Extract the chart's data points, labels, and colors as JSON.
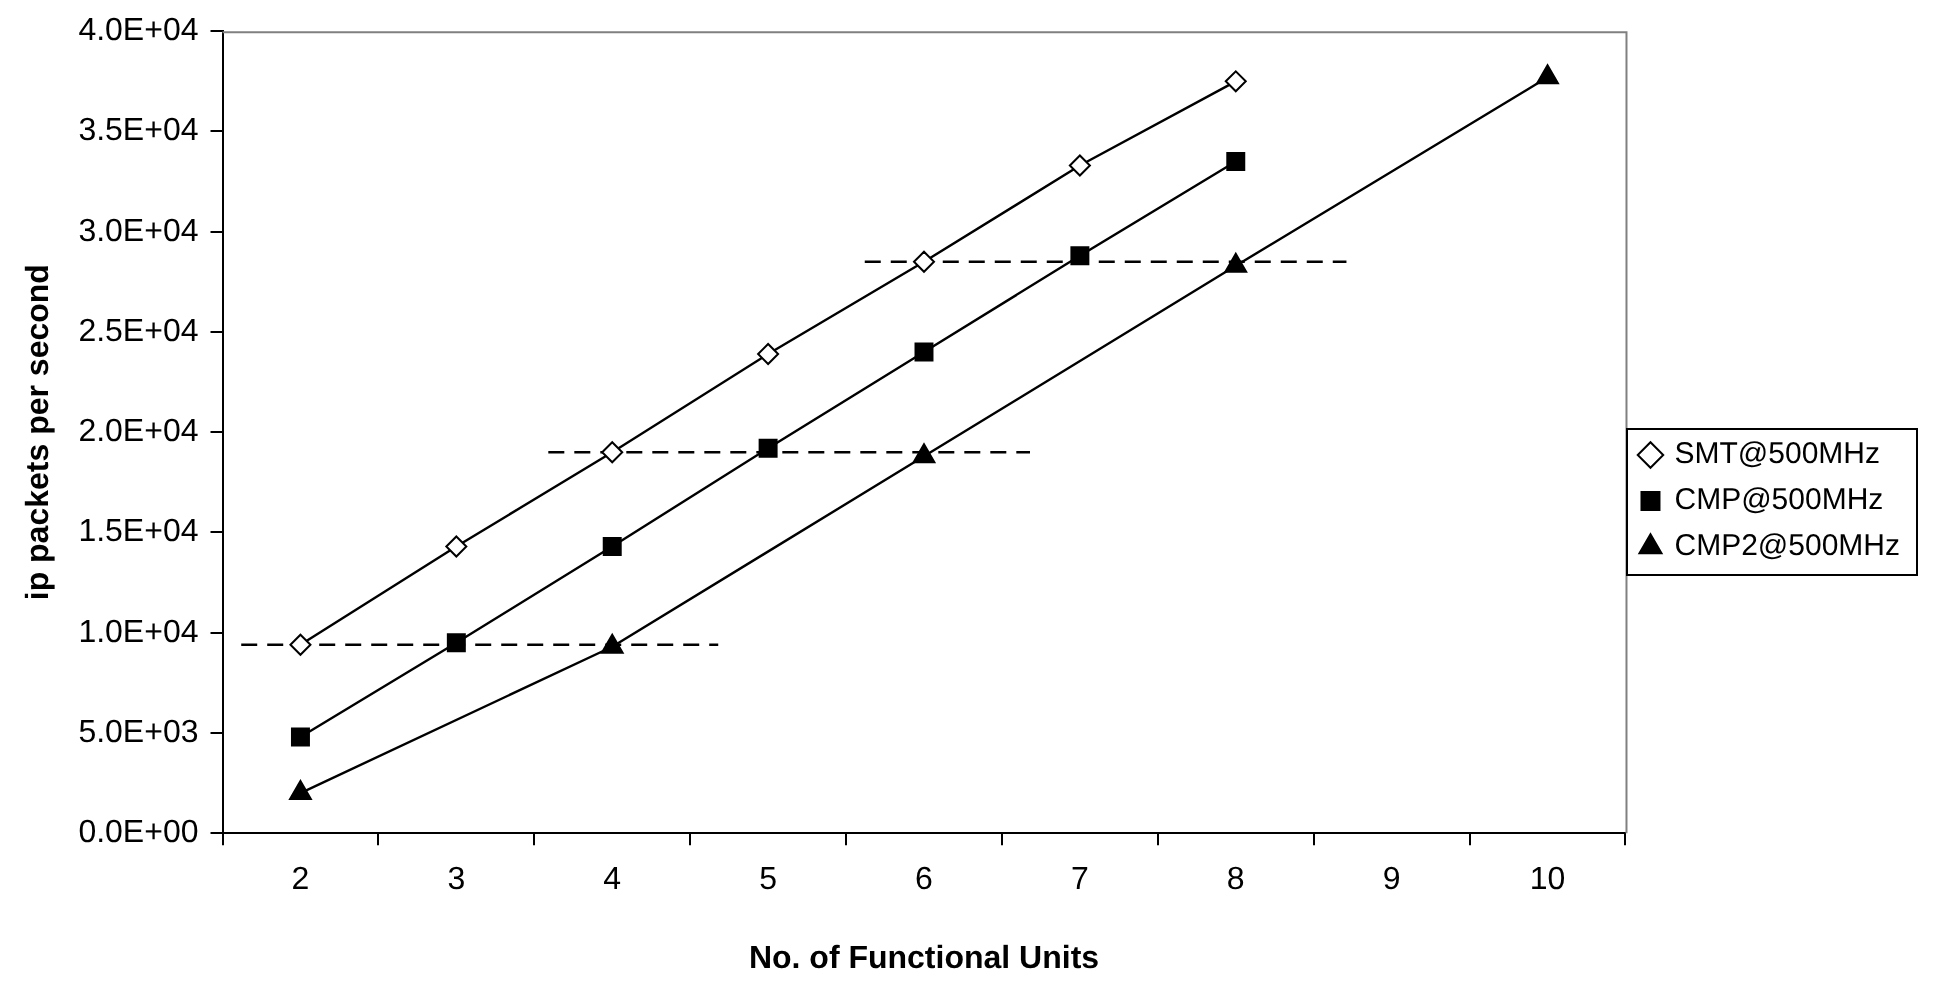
{
  "chart_data": {
    "type": "line",
    "xlabel": "No. of Functional Units",
    "ylabel": "ip packets per second",
    "xlim": [
      1.5,
      10.5
    ],
    "xticks": [
      {
        "value": 1.5,
        "label": null
      },
      {
        "value": 2,
        "label": "2"
      },
      {
        "value": 2.5,
        "label": null
      },
      {
        "value": 3,
        "label": "3"
      },
      {
        "value": 3.5,
        "label": null
      },
      {
        "value": 4,
        "label": "4"
      },
      {
        "value": 4.5,
        "label": null
      },
      {
        "value": 5,
        "label": "5"
      },
      {
        "value": 5.5,
        "label": null
      },
      {
        "value": 6,
        "label": "6"
      },
      {
        "value": 6.5,
        "label": null
      },
      {
        "value": 7,
        "label": "7"
      },
      {
        "value": 7.5,
        "label": null
      },
      {
        "value": 8,
        "label": "8"
      },
      {
        "value": 8.5,
        "label": null
      },
      {
        "value": 9,
        "label": "9"
      },
      {
        "value": 9.5,
        "label": null
      },
      {
        "value": 10,
        "label": "10"
      },
      {
        "value": 10.5,
        "label": null
      }
    ],
    "ylim": [
      0,
      40000
    ],
    "yticks": [
      {
        "value": 0,
        "label": "0.0E+00"
      },
      {
        "value": 5000,
        "label": "5.0E+03"
      },
      {
        "value": 10000,
        "label": "1.0E+04"
      },
      {
        "value": 15000,
        "label": "1.5E+04"
      },
      {
        "value": 20000,
        "label": "2.0E+04"
      },
      {
        "value": 25000,
        "label": "2.5E+04"
      },
      {
        "value": 30000,
        "label": "3.0E+04"
      },
      {
        "value": 35000,
        "label": "3.5E+04"
      },
      {
        "value": 40000,
        "label": "4.0E+04"
      }
    ],
    "grid": false,
    "legend": "right",
    "line_style": "solid",
    "series": [
      {
        "name": "SMT@500MHz",
        "color": "#000000",
        "marker": "diamond",
        "x": [
          2,
          3,
          4,
          5,
          6,
          7,
          8
        ],
        "values": [
          9400,
          14300,
          19000,
          23900,
          28500,
          33300,
          37500
        ]
      },
      {
        "name": "CMP@500MHz",
        "color": "#000000",
        "marker": "square",
        "x": [
          2,
          3,
          4,
          5,
          6,
          7,
          8
        ],
        "values": [
          4800,
          9500,
          14300,
          19200,
          24000,
          28800,
          33500
        ]
      },
      {
        "name": "CMP2@500MHz",
        "color": "#000000",
        "marker": "triangle",
        "x": [
          2,
          4,
          6,
          8,
          10
        ],
        "values": [
          2000,
          9300,
          18800,
          28300,
          37700
        ]
      },
      {
        "color": "#000000",
        "marker": "none",
        "line_style": "dashed",
        "x": [
          1.62,
          4.68
        ],
        "values": [
          9400,
          9400
        ]
      },
      {
        "color": "#000000",
        "marker": "none",
        "line_style": "dashed",
        "x": [
          3.59,
          6.68
        ],
        "values": [
          19000,
          19000
        ]
      },
      {
        "color": "#000000",
        "marker": "none",
        "line_style": "dashed",
        "x": [
          5.62,
          8.71
        ],
        "values": [
          28500,
          28500
        ]
      }
    ]
  }
}
